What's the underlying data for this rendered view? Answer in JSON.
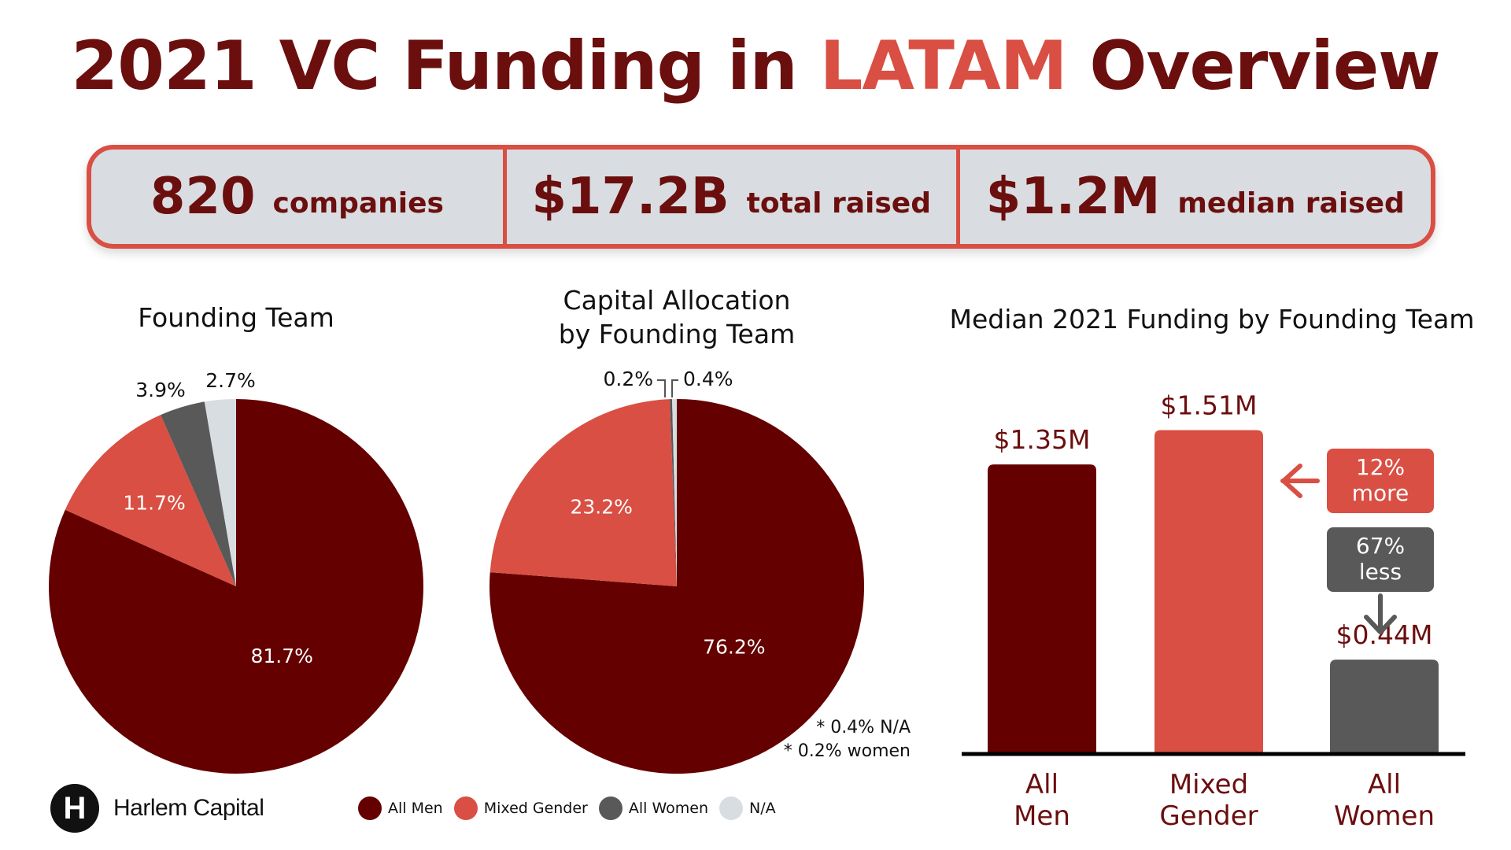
{
  "header": {
    "title_prefix": "2021 VC Funding in ",
    "title_accent": "LATAM",
    "title_suffix": " Overview"
  },
  "stats": [
    {
      "value": "820",
      "label": "companies"
    },
    {
      "value": "$17.2B",
      "label": "total raised"
    },
    {
      "value": "$1.2M",
      "label": "median raised"
    }
  ],
  "colors": {
    "all_men": "#640000",
    "mixed_gender": "#d94f43",
    "all_women": "#595959",
    "na": "#d8dde2",
    "title": "#6b0e0e",
    "accent": "#d94f43"
  },
  "chart_data": [
    {
      "type": "pie",
      "title": "Founding Team",
      "categories": [
        "All Men",
        "Mixed Gender",
        "All Women",
        "N/A"
      ],
      "values": [
        81.7,
        11.7,
        3.9,
        2.7
      ],
      "labels": [
        "81.7%",
        "11.7%",
        "3.9%",
        "2.7%"
      ]
    },
    {
      "type": "pie",
      "title": "Capital Allocation by Founding Team",
      "title_lines": [
        "Capital Allocation",
        "by Founding Team"
      ],
      "categories": [
        "All Men",
        "Mixed Gender",
        "All Women",
        "N/A"
      ],
      "values": [
        76.2,
        23.2,
        0.2,
        0.4
      ],
      "labels": [
        "76.2%",
        "23.2%",
        "0.2%",
        "0.4%"
      ],
      "footnotes": [
        "* 0.4% N/A",
        "* 0.2% women"
      ]
    },
    {
      "type": "bar",
      "title": "Median 2021 Funding by Founding Team",
      "categories": [
        "All Men",
        "Mixed Gender",
        "All Women"
      ],
      "category_lines": [
        [
          "All",
          "Men"
        ],
        [
          "Mixed",
          "Gender"
        ],
        [
          "All",
          "Women"
        ]
      ],
      "values": [
        1.35,
        1.51,
        0.44
      ],
      "value_labels": [
        "$1.35M",
        "$1.51M",
        "$0.44M"
      ],
      "ylim": [
        0,
        1.6
      ],
      "annotations": [
        {
          "lines": [
            "12%",
            "more"
          ],
          "target": "Mixed Gender"
        },
        {
          "lines": [
            "67%",
            "less"
          ],
          "target": "All Women"
        }
      ]
    }
  ],
  "legend": {
    "items": [
      {
        "label": "All Men",
        "color": "#640000"
      },
      {
        "label": "Mixed Gender",
        "color": "#d94f43"
      },
      {
        "label": "All Women",
        "color": "#595959"
      },
      {
        "label": "N/A",
        "color": "#d8dde2"
      }
    ]
  },
  "brand": {
    "mark": "H",
    "name": "Harlem Capital"
  }
}
